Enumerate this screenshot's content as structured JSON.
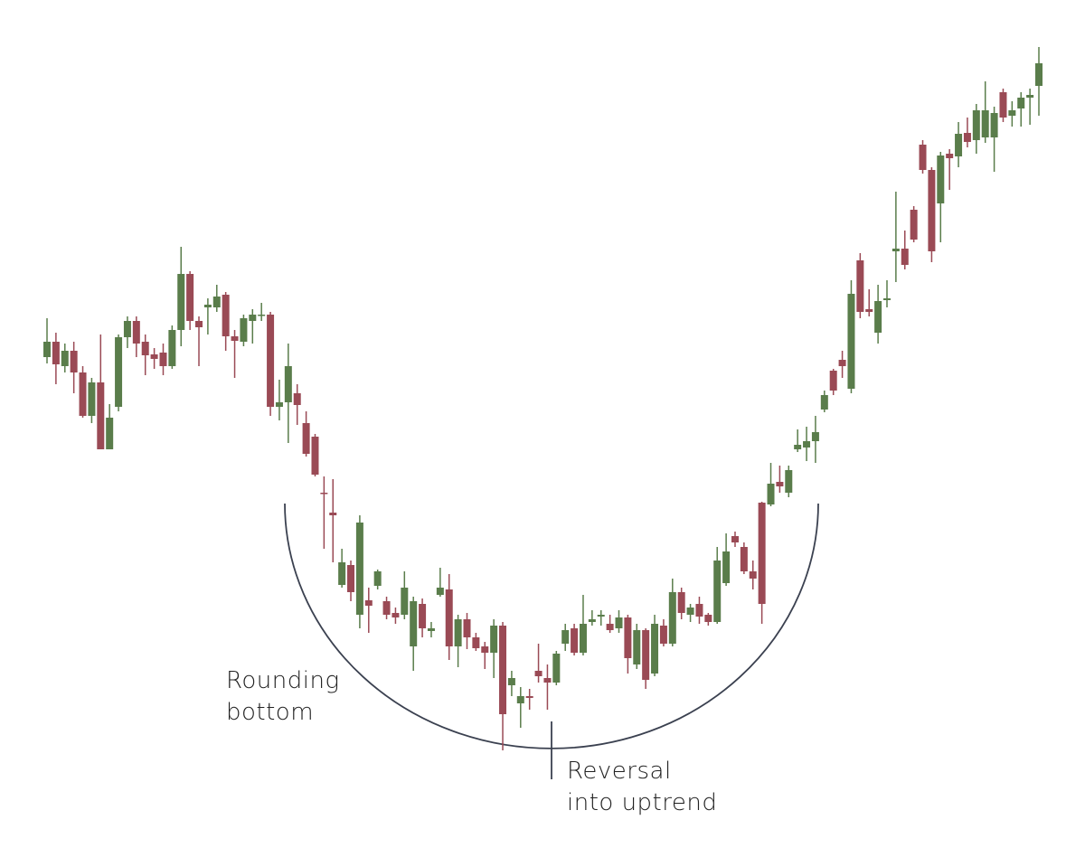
{
  "chart_data": {
    "type": "candlestick",
    "up_color": "#5a7d4b",
    "down_color": "#9a4a55",
    "ylim": [
      6.2,
      100
    ],
    "annotations": [
      {
        "lines": [
          "Rounding",
          "bottom"
        ]
      },
      {
        "lines": [
          "Reversal",
          "into uptrend"
        ]
      }
    ],
    "open": [
      60.5,
      62.2,
      59.5,
      61.2,
      58.8,
      54,
      57.7,
      50.3,
      55,
      62.7,
      64.5,
      62.2,
      60.8,
      61,
      59.5,
      63.5,
      69.7,
      64.5,
      66,
      66,
      67.4,
      62.8,
      62.2,
      64.5,
      65.2,
      65.2,
      55,
      55.5,
      56.5,
      53.2,
      51.7,
      45.5,
      43.3,
      35.3,
      37.5,
      32,
      33.6,
      35.2,
      33.5,
      32.2,
      32,
      28.5,
      33.2,
      30.2,
      34.2,
      34.8,
      28.5,
      31.5,
      29.5,
      28.5,
      27.8,
      30.8,
      24.2,
      22.2,
      23,
      25.8,
      25,
      24.5,
      28.8,
      30.5,
      27.8,
      31.2,
      31.8,
      31,
      30.5,
      31.7,
      26.5,
      30.3,
      25.5,
      30.8,
      28.8,
      34.5,
      32,
      33.2,
      32,
      31.2,
      35.5,
      40.7,
      39.5,
      36.8,
      44.4,
      44.2,
      46.7,
      45.5,
      50.3,
      50.5,
      51.2,
      54.7,
      59,
      60.2,
      57,
      71.2,
      65.8,
      63.2,
      66.8,
      72.2,
      72.5,
      76.8,
      84,
      81.2,
      77.5,
      83,
      82.7,
      85.3,
      84.5,
      84.8,
      84.8,
      89.8,
      87.2,
      88,
      89.2,
      90.5
    ],
    "high": [
      64.8,
      63.2,
      62,
      62.2,
      59.5,
      58.2,
      63,
      55.3,
      63,
      65,
      65,
      63,
      61.5,
      62,
      64,
      72.7,
      70,
      65,
      67,
      68.5,
      67.7,
      63.5,
      65.2,
      65.8,
      66.5,
      65.5,
      58,
      62,
      57.5,
      54.5,
      52,
      47.3,
      47,
      39.3,
      38,
      43,
      35,
      37,
      34,
      32.8,
      36.8,
      34,
      33.8,
      31.2,
      37.2,
      36.5,
      32,
      32.2,
      30,
      29,
      31.5,
      31.2,
      25.8,
      24,
      23.8,
      28.8,
      26.5,
      28,
      31,
      31,
      34.2,
      32.5,
      32.5,
      32,
      32.5,
      32,
      31,
      30.5,
      32,
      31.5,
      36,
      35,
      33.2,
      34,
      32.2,
      39.5,
      41,
      41.2,
      40,
      38,
      44.5,
      48.8,
      48.5,
      48.5,
      52.5,
      52.8,
      54,
      56.8,
      59.2,
      61.2,
      69,
      72,
      68,
      68.5,
      69,
      78.8,
      74.5,
      77.2,
      84.5,
      81.5,
      83.2,
      83.5,
      86.5,
      87,
      88.5,
      91,
      88.2,
      90.2,
      88.8,
      89.8,
      90.2,
      94.8
    ],
    "low": [
      59.8,
      57.5,
      58.8,
      56.5,
      53.8,
      53.2,
      50.3,
      50.3,
      54.5,
      61.5,
      60.5,
      58.5,
      59.2,
      58.5,
      59.2,
      61.7,
      63.5,
      59.5,
      63,
      65.5,
      61.2,
      58.2,
      61.7,
      62,
      64.5,
      54,
      53.5,
      51,
      53,
      49.5,
      47.3,
      39.3,
      37.8,
      35,
      33.5,
      30.5,
      30,
      34.8,
      31.5,
      31,
      31.5,
      25.8,
      29.5,
      29.5,
      34,
      27,
      26.2,
      28.2,
      28,
      26,
      25,
      17,
      23,
      19.5,
      21.5,
      24.5,
      21.5,
      24.2,
      28,
      27.5,
      27.5,
      30.8,
      30.8,
      30,
      30,
      25.5,
      26,
      23.8,
      25.2,
      28.5,
      28.5,
      31.5,
      31.2,
      31,
      30.8,
      31,
      35.2,
      39.5,
      36.5,
      34.8,
      31,
      44,
      45.5,
      45,
      50,
      49,
      48.8,
      54.4,
      56.3,
      58.2,
      56.5,
      64.8,
      65,
      62,
      66,
      68.8,
      70.2,
      73.2,
      80.8,
      71,
      73.2,
      79,
      81.5,
      83.7,
      83,
      84.2,
      81,
      86.5,
      86,
      86,
      86.2,
      87.2
    ],
    "close": [
      62.2,
      59.7,
      61.2,
      58.8,
      54,
      57.7,
      50.3,
      53.8,
      62.7,
      64.5,
      62,
      60.7,
      60.3,
      59.5,
      63.5,
      69.7,
      64.5,
      63.8,
      66.3,
      67.2,
      62.8,
      62.3,
      64.8,
      65.2,
      65.2,
      55,
      55.5,
      59.5,
      55.2,
      49.8,
      47.5,
      45.4,
      43,
      37.8,
      34.5,
      42.2,
      33,
      36.8,
      32,
      31.7,
      35,
      33.5,
      30.5,
      30.5,
      35,
      28.5,
      31.5,
      29.5,
      28.3,
      27.8,
      30.8,
      21,
      25,
      23,
      22.8,
      25.2,
      24.5,
      27.7,
      30.3,
      27.8,
      31,
      31.5,
      32,
      30.3,
      31.7,
      27.2,
      30.3,
      24.8,
      31,
      28.8,
      34.5,
      32.2,
      32.8,
      31.8,
      31.2,
      38,
      39,
      40,
      36.8,
      36,
      33.2,
      46.5,
      46.2,
      48,
      50.8,
      51.2,
      52.2,
      56.3,
      56.8,
      59.5,
      67.5,
      65.5,
      65.5,
      66.7,
      67,
      72.5,
      70.7,
      73.5,
      81.2,
      72.2,
      82.8,
      82.5,
      85.2,
      84.3,
      87.8,
      87.8,
      87.5,
      87,
      87.8,
      89.2,
      89.5,
      93
    ]
  }
}
